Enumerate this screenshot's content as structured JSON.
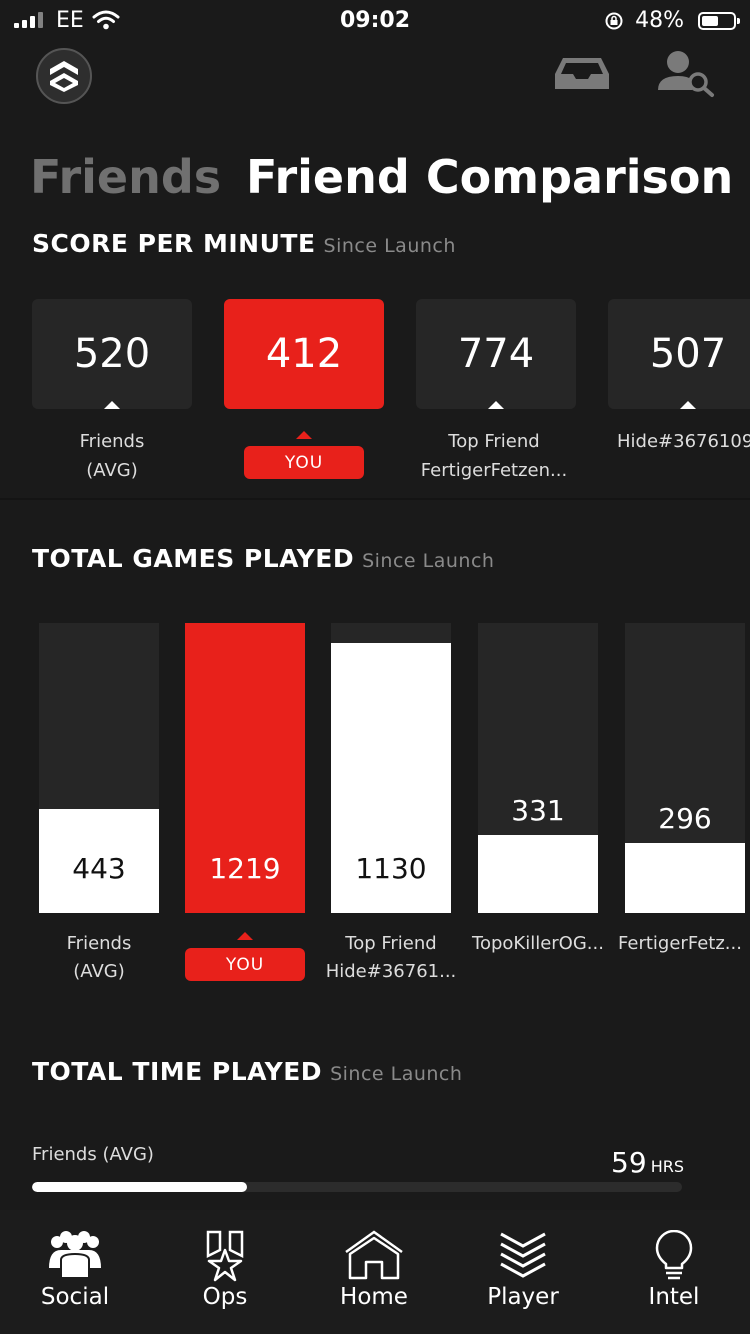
{
  "status_bar": {
    "carrier": "EE",
    "time": "09:02",
    "battery": "48%",
    "battery_level": 0.48
  },
  "tabs": {
    "inactive": "Friends",
    "active": "Friend Comparison"
  },
  "score_per_minute": {
    "title": "SCORE PER MINUTE",
    "subtitle": "Since Launch",
    "cards": [
      {
        "value": "520",
        "label_line1": "Friends",
        "label_line2": "(AVG)",
        "is_you": false
      },
      {
        "value": "412",
        "badge": "YOU",
        "is_you": true
      },
      {
        "value": "774",
        "label_line1": "Top Friend",
        "label_line2": "FertigerFetzen...",
        "is_you": false
      },
      {
        "value": "507",
        "label_line1": "Hide#3676109",
        "label_line2": "",
        "is_you": false
      }
    ]
  },
  "total_games_played": {
    "title": "TOTAL GAMES PLAYED",
    "subtitle": "Since Launch",
    "bars": [
      {
        "value": "443",
        "fill": 0.36,
        "label_line1": "Friends",
        "label_line2": "(AVG)",
        "is_you": false
      },
      {
        "value": "1219",
        "fill": 1.0,
        "badge": "YOU",
        "is_you": true
      },
      {
        "value": "1130",
        "fill": 0.93,
        "label_line1": "Top Friend",
        "label_line2": "Hide#36761...",
        "is_you": false
      },
      {
        "value": "331",
        "fill": 0.27,
        "label_line1": "TopoKillerOG...",
        "label_line2": "",
        "is_you": false
      },
      {
        "value": "296",
        "fill": 0.24,
        "label_line1": "FertigerFetz...",
        "label_line2": "",
        "is_you": false
      }
    ]
  },
  "total_time_played": {
    "title": "TOTAL TIME PLAYED",
    "subtitle": "Since Launch",
    "rows": [
      {
        "label": "Friends (AVG)",
        "value": "59",
        "unit": "HRS",
        "fill": 0.33
      }
    ]
  },
  "nav": {
    "items": [
      {
        "label": "Social",
        "icon": "social-icon"
      },
      {
        "label": "Ops",
        "icon": "ops-icon"
      },
      {
        "label": "Home",
        "icon": "home-icon"
      },
      {
        "label": "Player",
        "icon": "player-icon"
      },
      {
        "label": "Intel",
        "icon": "intel-icon"
      }
    ]
  },
  "colors": {
    "accent": "#e8211b",
    "background": "#1a1a1a",
    "card": "#262626",
    "muted_text": "#8a8a8a"
  }
}
